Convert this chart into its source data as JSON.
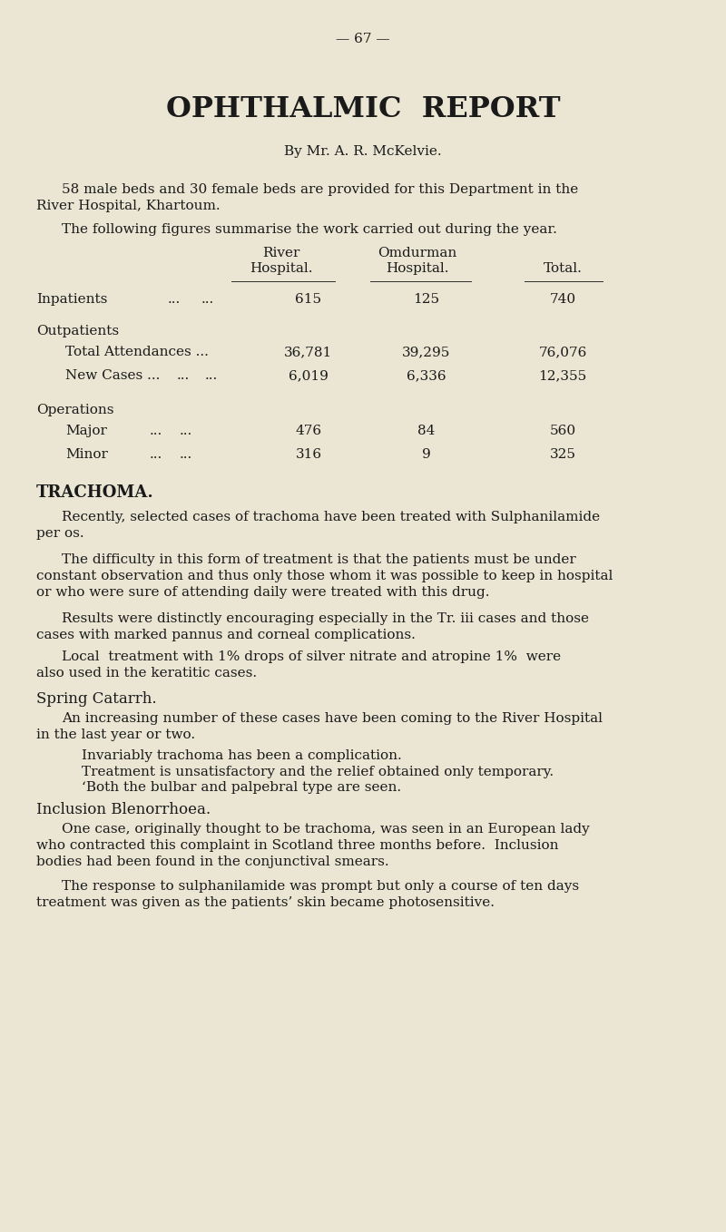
{
  "bg_color": "#eae6d3",
  "text_color": "#1a1a1a",
  "page_number": "— 67 —",
  "title": "OPHTHALMIC  REPORT",
  "byline": "By Mr. A. R. McKelvie.",
  "intro1": "58 male beds and 30 female beds are provided for this Department in the",
  "intro1b": "River Hospital, Khartoum.",
  "intro2": "The following figures summarise the work carried out during the year.",
  "col1_label1": "River",
  "col1_label2": "Hospital.",
  "col2_label1": "Omdurman",
  "col2_label2": "Hospital.",
  "col3_label": "Total.",
  "trachoma_heading": "TRACHOMA.",
  "trachoma_p1_indent": "Recently, selected cases of trachoma have been treated with Sulphanilamide",
  "trachoma_p1_cont": "per os.",
  "trachoma_p2_indent": "The difficulty in this form of treatment is that the patients must be under",
  "trachoma_p2_line2": "constant observation and thus only those whom it was possible to keep in hospital",
  "trachoma_p2_line3": "or who were sure of attending daily were treated with this drug.",
  "trachoma_p3_indent": "Results were distinctly encouraging especially in the Tr. iii cases and those",
  "trachoma_p3_line2": "cases with marked pannus and corneal complications.",
  "trachoma_p4_indent": "Local  treatment with 1% drops of silver nitrate and atropine 1%  were",
  "trachoma_p4_line2": "also used in the keratitic cases.",
  "spring_heading": "Spring Catarrh.",
  "spring_p1_indent": "An increasing number of these cases have been coming to the River Hospital",
  "spring_p1_line2": "in the last year or two.",
  "spring_p2": "Invariably trachoma has been a complication.",
  "spring_p3": "Treatment is unsatisfactory and the relief obtained only temporary.",
  "spring_p4": "‘Both the bulbar and palpebral type are seen.",
  "inclusion_heading": "Inclusion Blenorrhoea.",
  "inclusion_p1_indent": "One case, originally thought to be trachoma, was seen in an European lady",
  "inclusion_p1_line2": "who contracted this complaint in Scotland three months before.  Inclusion",
  "inclusion_p1_line3": "bodies had been found in the conjunctival smears.",
  "inclusion_p2_indent": "The response to sulphanilamide was prompt but only a course of ten days",
  "inclusion_p2_line2": "treatment was given as the patients’ skin became photosensitive."
}
